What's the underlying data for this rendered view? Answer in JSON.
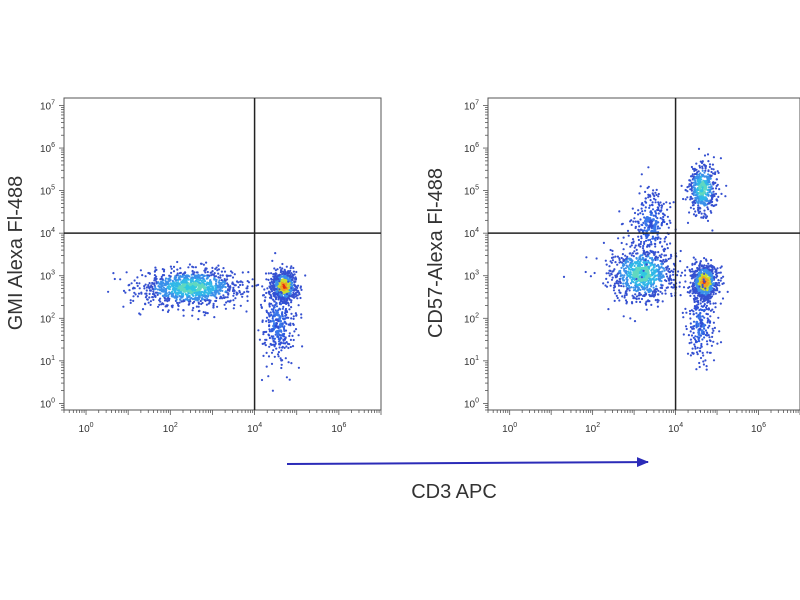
{
  "figure": {
    "shared_xlabel": "CD3 APC",
    "arrow_color": "#2b2bb8"
  },
  "chart_data": [
    {
      "type": "scatter",
      "subtype": "flow-cytometry-density-dot-plot",
      "ylabel": "GMI Alexa Fl-488",
      "x_scale": "log",
      "y_scale": "log",
      "xlim": [
        0.3,
        10000000
      ],
      "ylim": [
        0.7,
        15000000
      ],
      "x_ticks": [
        {
          "exp": 0,
          "label_base": "10",
          "label_exp": "0"
        },
        {
          "exp": 2,
          "label_base": "10",
          "label_exp": "2"
        },
        {
          "exp": 4,
          "label_base": "10",
          "label_exp": "4"
        },
        {
          "exp": 6,
          "label_base": "10",
          "label_exp": "6"
        }
      ],
      "y_ticks": [
        {
          "exp": 0,
          "label_base": "10",
          "label_exp": "0"
        },
        {
          "exp": 1,
          "label_base": "10",
          "label_exp": "1"
        },
        {
          "exp": 2,
          "label_base": "10",
          "label_exp": "2"
        },
        {
          "exp": 3,
          "label_base": "10",
          "label_exp": "3"
        },
        {
          "exp": 4,
          "label_base": "10",
          "label_exp": "4"
        },
        {
          "exp": 5,
          "label_base": "10",
          "label_exp": "5"
        },
        {
          "exp": 6,
          "label_base": "10",
          "label_exp": "6"
        },
        {
          "exp": 7,
          "label_base": "10",
          "label_exp": "7"
        }
      ],
      "quadrant_gate": {
        "x": 10000,
        "y": 10000
      },
      "populations": [
        {
          "center_log10": [
            2.5,
            2.72
          ],
          "spread_log10": [
            0.62,
            0.22
          ],
          "n": 1000,
          "peak": "cyan"
        },
        {
          "center_log10": [
            4.7,
            2.75
          ],
          "spread_log10": [
            0.16,
            0.18
          ],
          "n": 650,
          "peak": "red"
        },
        {
          "center_log10": [
            4.55,
            1.9
          ],
          "spread_log10": [
            0.2,
            0.5
          ],
          "n": 320,
          "peak": "blue"
        }
      ],
      "grid": false,
      "legend": "none"
    },
    {
      "type": "scatter",
      "subtype": "flow-cytometry-density-dot-plot",
      "ylabel": "CD57-Alexa Fl-488",
      "x_scale": "log",
      "y_scale": "log",
      "xlim": [
        0.3,
        10000000
      ],
      "ylim": [
        0.7,
        15000000
      ],
      "x_ticks": [
        {
          "exp": 0,
          "label_base": "10",
          "label_exp": "0"
        },
        {
          "exp": 2,
          "label_base": "10",
          "label_exp": "2"
        },
        {
          "exp": 4,
          "label_base": "10",
          "label_exp": "4"
        },
        {
          "exp": 6,
          "label_base": "10",
          "label_exp": "6"
        }
      ],
      "y_ticks": [
        {
          "exp": 0,
          "label_base": "10",
          "label_exp": "0"
        },
        {
          "exp": 1,
          "label_base": "10",
          "label_exp": "1"
        },
        {
          "exp": 2,
          "label_base": "10",
          "label_exp": "2"
        },
        {
          "exp": 3,
          "label_base": "10",
          "label_exp": "3"
        },
        {
          "exp": 4,
          "label_base": "10",
          "label_exp": "4"
        },
        {
          "exp": 5,
          "label_base": "10",
          "label_exp": "5"
        },
        {
          "exp": 6,
          "label_base": "10",
          "label_exp": "6"
        },
        {
          "exp": 7,
          "label_base": "10",
          "label_exp": "7"
        }
      ],
      "quadrant_gate": {
        "x": 10000,
        "y": 10000
      },
      "populations": [
        {
          "center_log10": [
            3.2,
            3.05
          ],
          "spread_log10": [
            0.4,
            0.32
          ],
          "n": 800,
          "peak": "cyan"
        },
        {
          "center_log10": [
            3.4,
            4.2
          ],
          "spread_log10": [
            0.25,
            0.45
          ],
          "n": 250,
          "peak": "blue"
        },
        {
          "center_log10": [
            4.7,
            2.85
          ],
          "spread_log10": [
            0.16,
            0.22
          ],
          "n": 700,
          "peak": "red"
        },
        {
          "center_log10": [
            4.65,
            5.05
          ],
          "spread_log10": [
            0.17,
            0.3
          ],
          "n": 450,
          "peak": "cyan"
        },
        {
          "center_log10": [
            4.6,
            1.85
          ],
          "spread_log10": [
            0.17,
            0.45
          ],
          "n": 220,
          "peak": "blue"
        }
      ],
      "grid": false,
      "legend": "none"
    }
  ]
}
